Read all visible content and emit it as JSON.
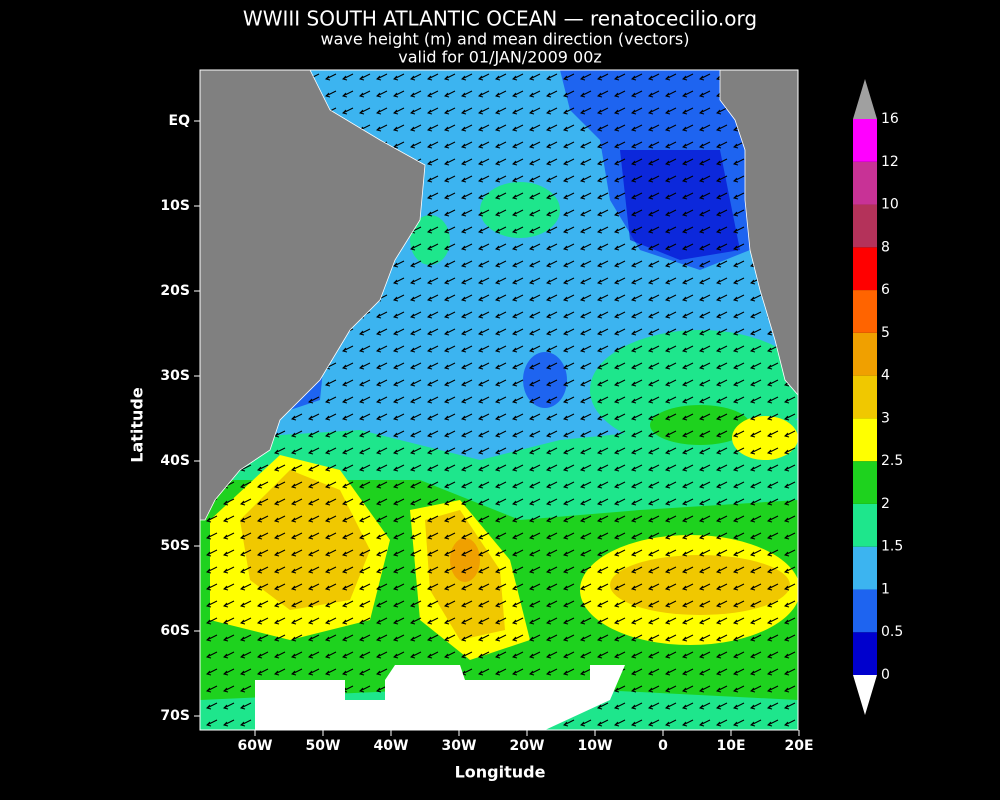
{
  "map": {
    "title": "WWIII SOUTH ATLANTIC OCEAN — renatocecilio.org",
    "subtitle": "wave height (m) and mean direction (vectors)",
    "valid": "valid for 01/JAN/2009 00z",
    "xlabel": "Longitude",
    "ylabel": "Latitude",
    "xticks": [
      {
        "value": -60,
        "label": "60W"
      },
      {
        "value": -50,
        "label": "50W"
      },
      {
        "value": -40,
        "label": "40W"
      },
      {
        "value": -30,
        "label": "30W"
      },
      {
        "value": -20,
        "label": "20W"
      },
      {
        "value": -10,
        "label": "10W"
      },
      0,
      {
        "value": 10,
        "label": "10E"
      },
      {
        "value": 20,
        "label": "20E"
      }
    ],
    "yticks": [
      {
        "value": 0,
        "label": "EQ"
      },
      {
        "value": -10,
        "label": "10S"
      },
      {
        "value": -20,
        "label": "20S"
      },
      {
        "value": -30,
        "label": "30S"
      },
      {
        "value": -40,
        "label": "40S"
      },
      {
        "value": -50,
        "label": "50S"
      },
      {
        "value": -60,
        "label": "60S"
      },
      {
        "value": -70,
        "label": "70S"
      }
    ],
    "colorbar": {
      "levels": [
        0,
        0.5,
        1,
        1.5,
        2,
        2.5,
        3,
        4,
        5,
        6,
        8,
        10,
        12,
        16
      ],
      "colors": [
        "#0000cd",
        "#1e64f0",
        "#3cb4f0",
        "#1ee68c",
        "#1ed21e",
        "#ffff00",
        "#f0c800",
        "#f0a000",
        "#ff6400",
        "#ff0000",
        "#b4325a",
        "#c83296",
        "#ff00ff"
      ],
      "under_color": "#ffffff",
      "over_color": "#a0a0a0"
    }
  }
}
